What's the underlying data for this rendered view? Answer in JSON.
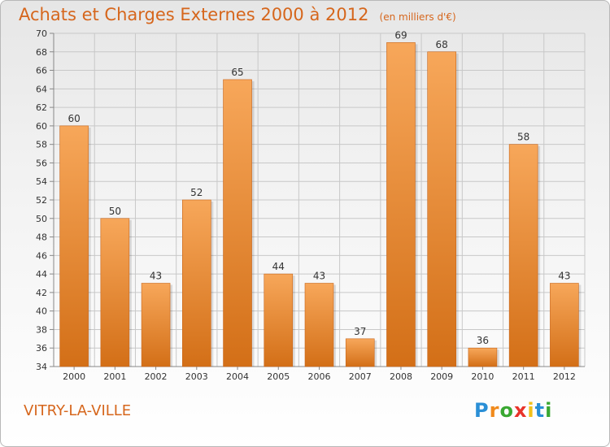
{
  "title": "Achats et Charges Externes 2000 à 2012",
  "unit_note": "(en milliers d'€)",
  "location": "VITRY-LA-VILLE",
  "brand": {
    "letters": [
      "P",
      "r",
      "o",
      "x",
      "i",
      "t",
      "i"
    ],
    "colors": [
      "#2a8fd6",
      "#f08a1c",
      "#3aa832",
      "#e8332a",
      "#f2c01a",
      "#2a8fd6",
      "#3aa832"
    ]
  },
  "colors": {
    "bar_top": "#f7a75a",
    "bar_bottom": "#d36f17",
    "text_accent": "#d6661c",
    "grid": "#c8c8c8"
  },
  "chart_data": {
    "type": "bar",
    "title": "Achats et Charges Externes 2000 à 2012",
    "categories": [
      "2000",
      "2001",
      "2002",
      "2003",
      "2004",
      "2005",
      "2006",
      "2007",
      "2008",
      "2009",
      "2010",
      "2011",
      "2012"
    ],
    "values": [
      60,
      50,
      43,
      52,
      65,
      44,
      43,
      37,
      69,
      68,
      36,
      58,
      43
    ],
    "ylim": [
      34,
      70
    ],
    "yticks": [
      34,
      36,
      38,
      40,
      42,
      44,
      46,
      48,
      50,
      52,
      54,
      56,
      58,
      60,
      62,
      64,
      66,
      68,
      70
    ],
    "grid": true,
    "legend": "none"
  }
}
